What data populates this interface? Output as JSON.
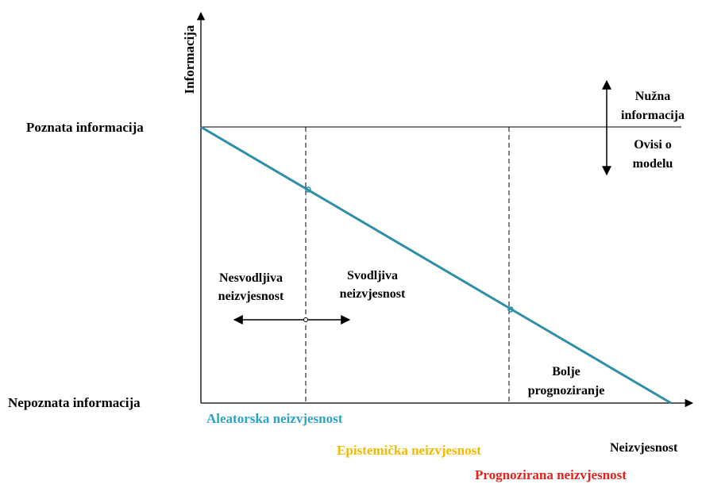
{
  "axes": {
    "y_label": "Informacija",
    "x_label": "Neizvjesnost",
    "top_level": "Poznata informacija",
    "bottom_level": "Nepoznata informacija"
  },
  "annotations": {
    "necessary": [
      "Nužna",
      "informacija"
    ],
    "model": [
      "Ovisi o",
      "modelu"
    ],
    "irreducible": [
      "Nesvodljiva",
      "neizvjesnost"
    ],
    "reducible": [
      "Svodljiva",
      "neizvjesnost"
    ],
    "better": [
      "Bolje",
      "prognoziranje"
    ]
  },
  "legend": {
    "aleatoric": "Aleatorska neizvjesnost",
    "epistemic": "Epistemička neizvjesnost",
    "predicted": "Prognozirana neizvjesnost"
  }
}
